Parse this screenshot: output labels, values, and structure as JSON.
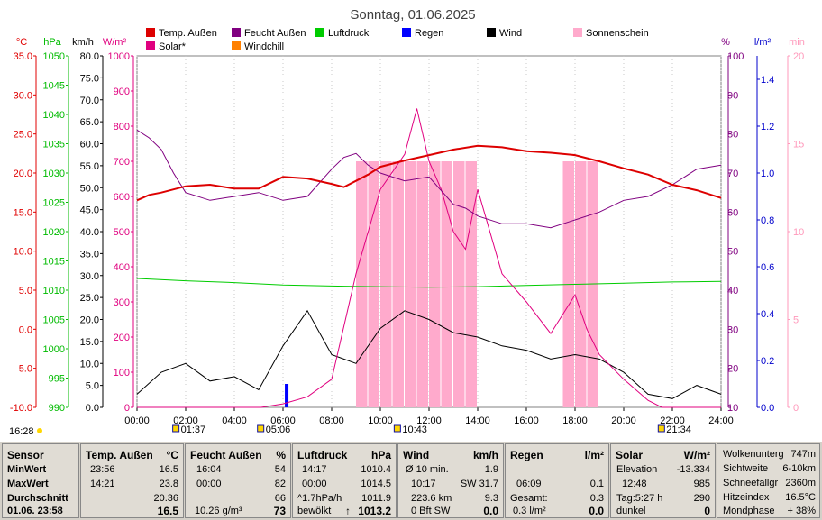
{
  "title": "Sonntag, 01.06.2025",
  "legend": [
    {
      "label": "Temp. Außen",
      "color": "#dd0000"
    },
    {
      "label": "Feucht Außen",
      "color": "#800080"
    },
    {
      "label": "Luftdruck",
      "color": "#00cc00"
    },
    {
      "label": "Regen",
      "color": "#0000ff"
    },
    {
      "label": "Wind",
      "color": "#000000"
    },
    {
      "label": "Sonnenschein",
      "color": "#ffaacc"
    },
    {
      "label": "Solar*",
      "color": "#e0007f"
    },
    {
      "label": "Windchill",
      "color": "#ff8000"
    }
  ],
  "axis_units": {
    "temp": "°C",
    "pressure": "hPa",
    "wind": "km/h",
    "solar": "W/m²",
    "humidity": "%",
    "rain": "l/m²",
    "sunshine": "min"
  },
  "axis_ticks": {
    "temp": [
      "35.0",
      "30.0",
      "25.0",
      "20.0",
      "15.0",
      "10.0",
      "5.0",
      "0.0",
      "-5.0",
      "-10.0"
    ],
    "pressure": [
      "1050",
      "1045",
      "1040",
      "1035",
      "1030",
      "1025",
      "1020",
      "1015",
      "1010",
      "1005",
      "1000",
      "995",
      "990"
    ],
    "wind": [
      "80.0",
      "75.0",
      "70.0",
      "65.0",
      "60.0",
      "55.0",
      "50.0",
      "45.0",
      "40.0",
      "35.0",
      "30.0",
      "25.0",
      "20.0",
      "15.0",
      "10.0",
      "5.0",
      "0.0"
    ],
    "solar": [
      "1000",
      "900",
      "800",
      "700",
      "600",
      "500",
      "400",
      "300",
      "200",
      "100",
      "0"
    ],
    "humidity": [
      "100",
      "90",
      "80",
      "70",
      "60",
      "50",
      "40",
      "30",
      "20",
      "10"
    ],
    "rain": [
      "1.4",
      "1.2",
      "1.0",
      "0.8",
      "0.6",
      "0.4",
      "0.2",
      "0.0"
    ],
    "sunshine": [
      "20",
      "15",
      "10",
      "5",
      "0"
    ],
    "time": [
      "00:00",
      "02:00",
      "04:00",
      "06:00",
      "08:00",
      "10:00",
      "12:00",
      "14:00",
      "16:00",
      "18:00",
      "20:00",
      "22:00",
      "24:00"
    ]
  },
  "markers": {
    "sunrise_moon": "01:37",
    "sunrise": "05:06",
    "moon_phase": "10:43",
    "sunset": "21:34",
    "moonset": "16:28"
  },
  "chart_data": {
    "type": "line",
    "title": "Sonntag, 01.06.2025",
    "x_range": [
      "00:00",
      "24:00"
    ],
    "series": [
      {
        "name": "Temp. Außen",
        "unit": "°C",
        "x": [
          "00:00",
          "00:30",
          "01:00",
          "02:00",
          "03:00",
          "04:00",
          "05:00",
          "06:00",
          "07:00",
          "08:00",
          "08:30",
          "09:00",
          "09:30",
          "10:00",
          "11:00",
          "12:00",
          "13:00",
          "14:00",
          "15:00",
          "16:00",
          "17:00",
          "18:00",
          "19:00",
          "20:00",
          "21:00",
          "22:00",
          "23:00",
          "24:00"
        ],
        "values": [
          16.5,
          17.2,
          17.5,
          18.3,
          18.5,
          18.0,
          18.0,
          19.5,
          19.3,
          18.6,
          18.2,
          19.0,
          19.8,
          20.8,
          21.6,
          22.3,
          23.0,
          23.5,
          23.3,
          22.8,
          22.6,
          22.3,
          21.5,
          20.6,
          19.8,
          18.5,
          17.8,
          16.8
        ]
      },
      {
        "name": "Feucht Außen",
        "unit": "%",
        "x": [
          "00:00",
          "00:30",
          "01:00",
          "01:30",
          "02:00",
          "03:00",
          "04:00",
          "05:00",
          "06:00",
          "07:00",
          "08:00",
          "08:30",
          "09:00",
          "09:30",
          "10:00",
          "11:00",
          "12:00",
          "13:00",
          "13:30",
          "14:00",
          "15:00",
          "16:00",
          "17:00",
          "18:00",
          "19:00",
          "20:00",
          "21:00",
          "22:00",
          "23:00",
          "24:00"
        ],
        "values": [
          81,
          79,
          76,
          70,
          65,
          63,
          64,
          65,
          63,
          64,
          71,
          74,
          75,
          72,
          70,
          68,
          69,
          62,
          61,
          59,
          57,
          57,
          56,
          58,
          60,
          63,
          64,
          67,
          71,
          72
        ]
      },
      {
        "name": "Luftdruck",
        "unit": "hPa",
        "x": [
          "00:00",
          "02:00",
          "04:00",
          "06:00",
          "08:00",
          "10:00",
          "12:00",
          "14:00",
          "16:00",
          "18:00",
          "20:00",
          "22:00",
          "24:00"
        ],
        "values": [
          1012.0,
          1011.6,
          1011.3,
          1010.9,
          1010.7,
          1010.6,
          1010.5,
          1010.6,
          1010.8,
          1011.0,
          1011.2,
          1011.4,
          1011.5
        ]
      },
      {
        "name": "Wind",
        "unit": "km/h",
        "x": [
          "00:00",
          "01:00",
          "02:00",
          "03:00",
          "04:00",
          "05:00",
          "06:00",
          "07:00",
          "08:00",
          "09:00",
          "10:00",
          "11:00",
          "12:00",
          "13:00",
          "14:00",
          "15:00",
          "16:00",
          "17:00",
          "18:00",
          "19:00",
          "20:00",
          "21:00",
          "22:00",
          "23:00",
          "24:00"
        ],
        "values": [
          3,
          8,
          10,
          6,
          7,
          4,
          14,
          22,
          12,
          10,
          18,
          22,
          20,
          17,
          16,
          14,
          13,
          11,
          12,
          11,
          8,
          3,
          2,
          5,
          3
        ]
      },
      {
        "name": "Solar*",
        "unit": "W/m²",
        "x": [
          "00:00",
          "05:06",
          "06:00",
          "07:00",
          "08:00",
          "09:00",
          "10:00",
          "11:00",
          "11:30",
          "12:00",
          "12:30",
          "13:00",
          "13:30",
          "14:00",
          "15:00",
          "16:00",
          "17:00",
          "18:00",
          "18:30",
          "19:00",
          "20:00",
          "21:00",
          "21:34",
          "24:00"
        ],
        "values": [
          0,
          0,
          10,
          30,
          80,
          380,
          620,
          720,
          850,
          700,
          620,
          500,
          450,
          620,
          380,
          300,
          210,
          320,
          220,
          150,
          80,
          20,
          0,
          0
        ]
      },
      {
        "name": "Regen",
        "unit": "l/m²",
        "x": [
          "06:09"
        ],
        "values": [
          0.1
        ]
      },
      {
        "name": "Sonnenschein",
        "unit": "min",
        "x": [
          "09:00",
          "09:30",
          "10:00",
          "10:30",
          "11:00",
          "11:30",
          "12:00",
          "12:30",
          "13:00",
          "13:30",
          "17:30",
          "18:00",
          "18:30"
        ],
        "values": [
          1,
          1,
          1,
          1,
          1,
          1,
          1,
          1,
          1,
          1,
          1,
          1,
          1
        ]
      }
    ]
  },
  "panel": {
    "sensor": {
      "title": "Sensor",
      "rows": [
        "MinWert",
        "MaxWert",
        "Durchschnitt",
        "01.06. 23:58"
      ]
    },
    "temp": {
      "title": "Temp. Außen",
      "unit": "°C",
      "min_time": "23:56",
      "min": "16.5",
      "max_time": "14:21",
      "max": "23.8",
      "avg": "20.36",
      "current": "16.5"
    },
    "humidity": {
      "title": "Feucht Außen",
      "unit": "%",
      "min_time": "16:04",
      "min": "54",
      "max_time": "00:00",
      "max": "82",
      "avg": "66",
      "abs": "10.26 g/m³",
      "current": "73"
    },
    "pressure": {
      "title": "Luftdruck",
      "unit": "hPa",
      "min_time": "14:17",
      "min": "1010.4",
      "max_time": "00:00",
      "max": "1014.5",
      "trend_label": "^1.7hPa/h",
      "avg": "1011.9",
      "forecast": "bewölkt",
      "arrow": "↑",
      "current": "1013.2"
    },
    "wind": {
      "title": "Wind",
      "unit": "km/h",
      "avg_label": "Ø 10 min.",
      "avg": "1.9",
      "gust_time": "10:17",
      "gust": "SW 31.7",
      "dist": "223.6 km",
      "dist_avg": "9.3",
      "bft": "0 Bft SW",
      "current": "0.0"
    },
    "rain": {
      "title": "Regen",
      "unit": "l/m²",
      "time": "06:09",
      "val": "0.1",
      "total_label": "Gesamt:",
      "total": "0.3",
      "rate": "0.3 l/m²",
      "current": "0.0"
    },
    "solar": {
      "title": "Solar",
      "unit": "W/m²",
      "elev_label": "Elevation",
      "elev": "-13.334",
      "time": "12:48",
      "val": "985",
      "day_label": "Tag:5:27 h",
      "day_val": "290",
      "dark": "dunkel",
      "current": "0"
    },
    "info": [
      {
        "label": "Wolkenunterg",
        "value": "747m"
      },
      {
        "label": "Sichtweite",
        "value": "6-10km"
      },
      {
        "label": "Schneefallgr",
        "value": "2360m"
      },
      {
        "label": "Hitzeindex",
        "value": "16.5°C"
      },
      {
        "label": "Mondphase",
        "value": "+ 38%"
      }
    ]
  }
}
